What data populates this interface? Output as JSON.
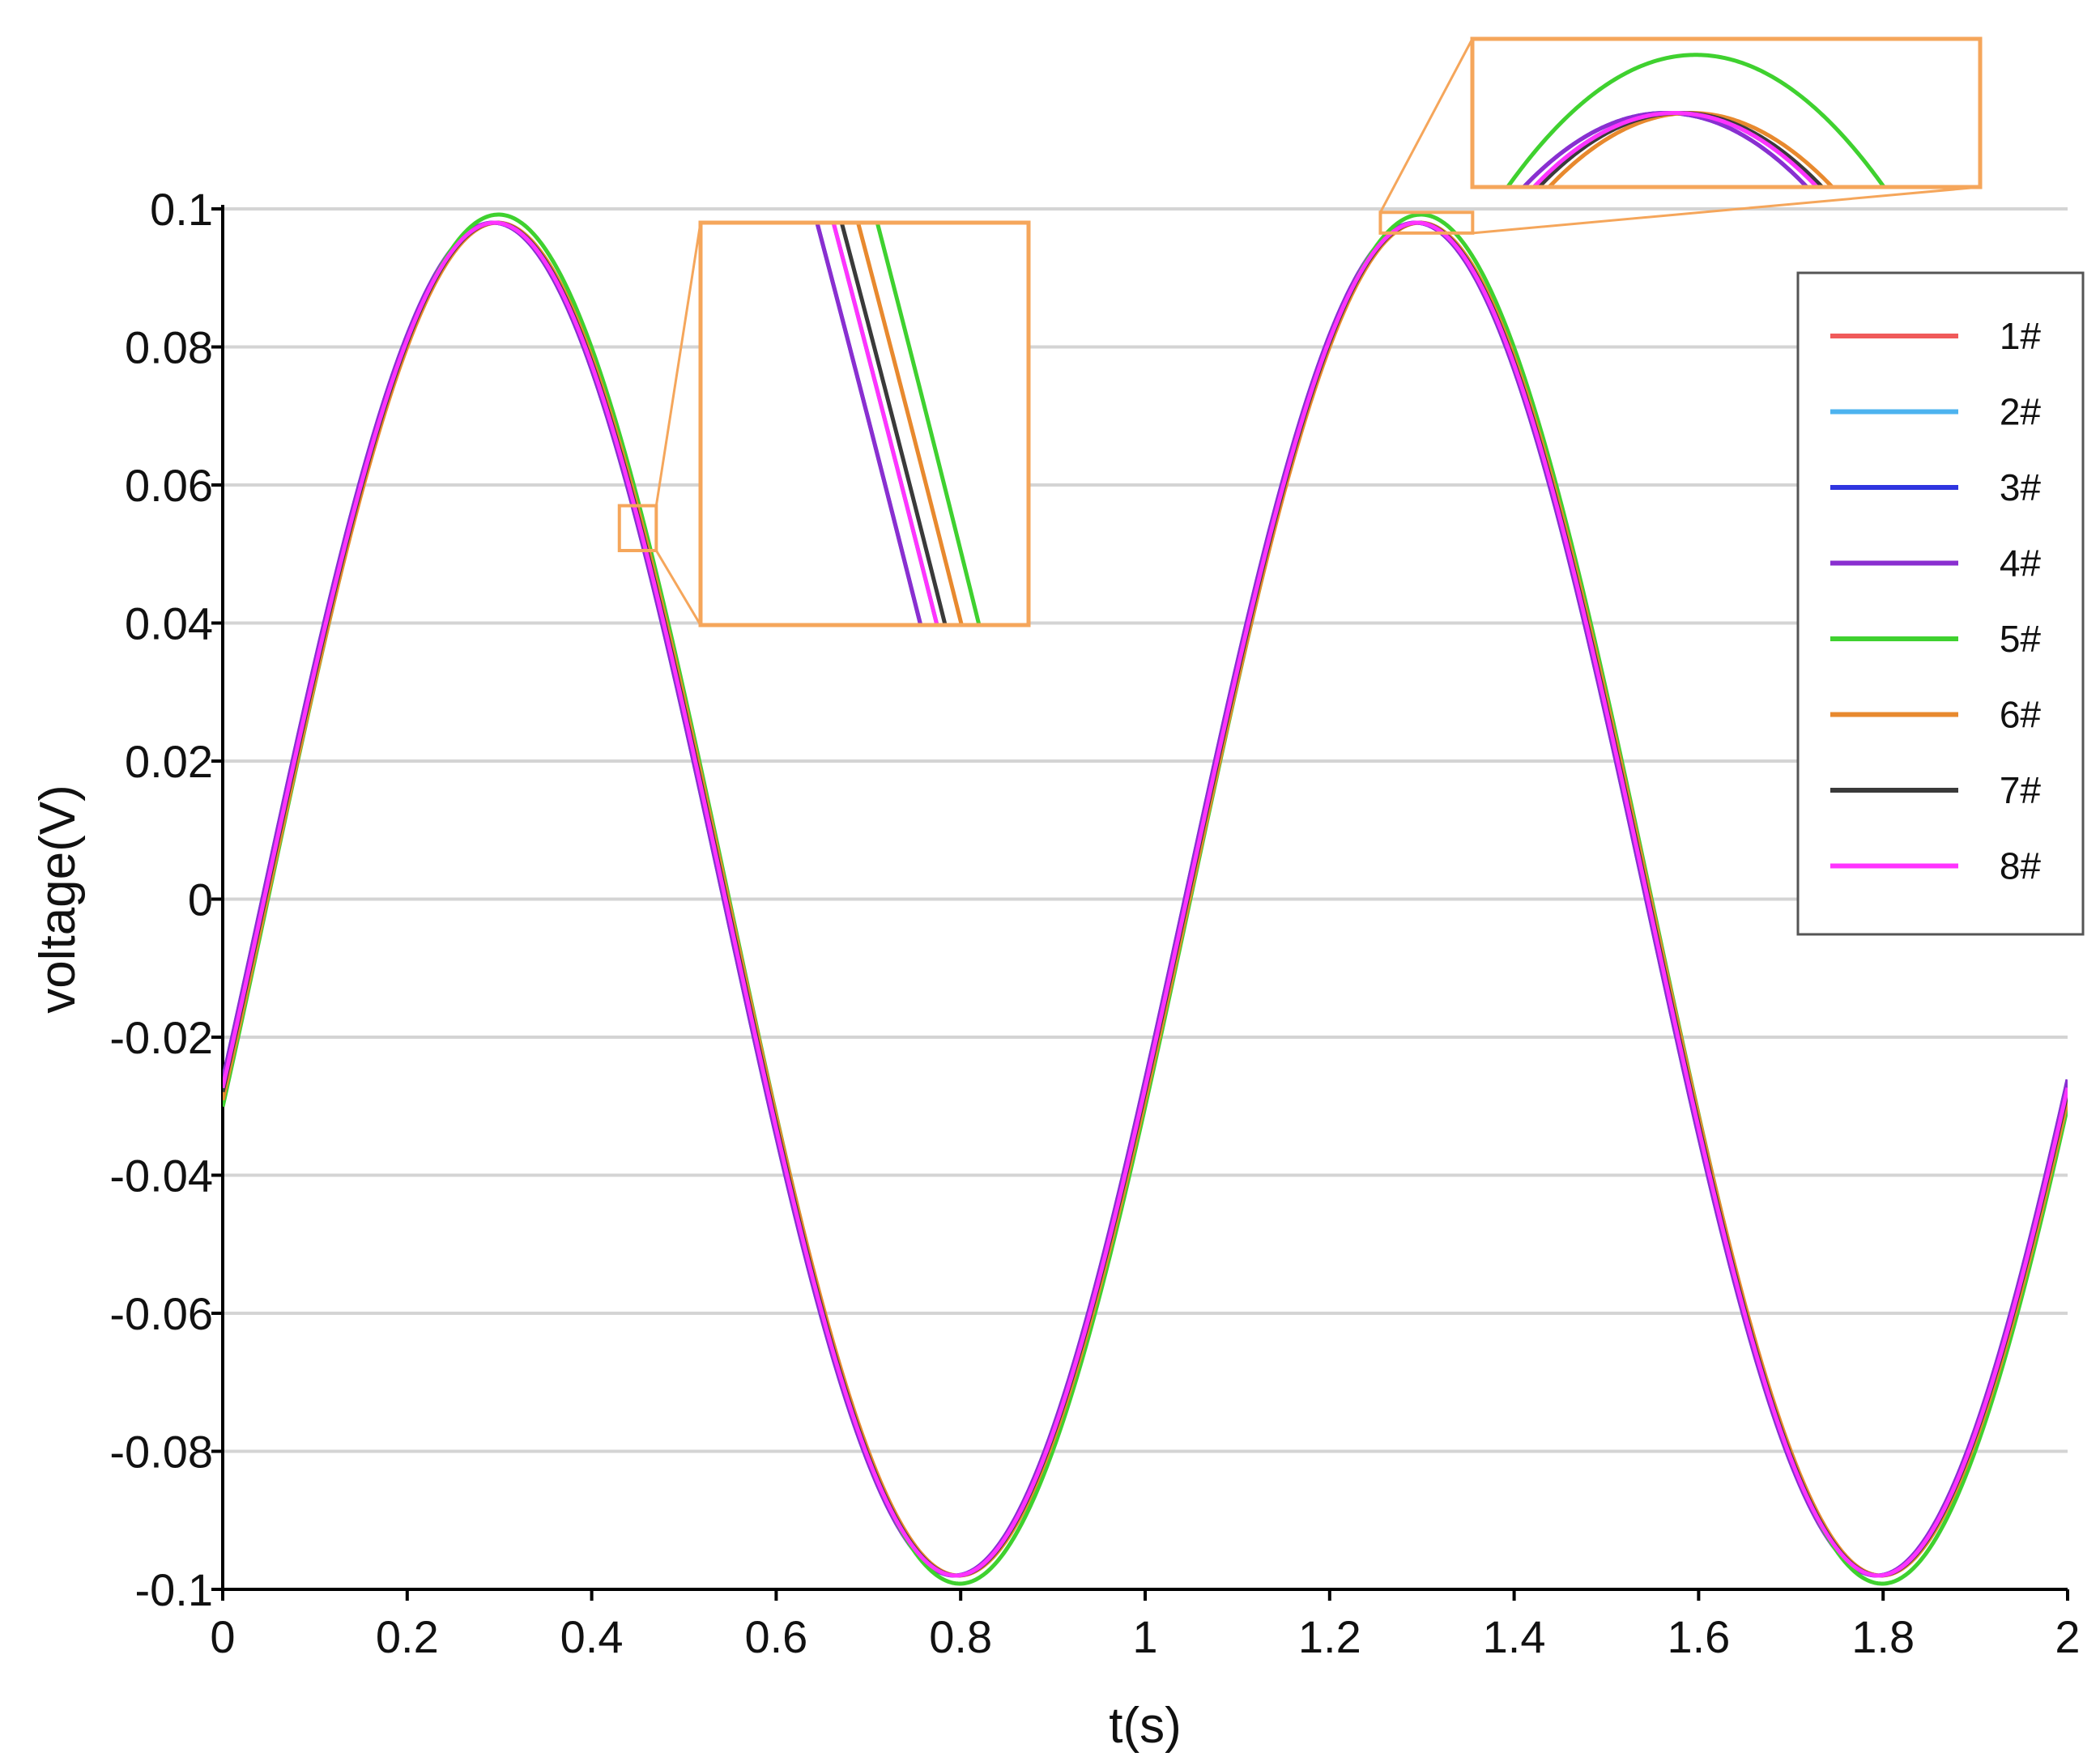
{
  "chart_data": {
    "type": "line",
    "xlabel": "t(s)",
    "ylabel": "voltage(V)",
    "xlim": [
      0,
      2
    ],
    "ylim": [
      -0.1,
      0.1
    ],
    "x_ticks": [
      "0",
      "0.2",
      "0.4",
      "0.6",
      "0.8",
      "1",
      "1.2",
      "1.4",
      "1.6",
      "1.8",
      "2"
    ],
    "y_ticks": [
      "0.1",
      "0.08",
      "0.06",
      "0.04",
      "0.02",
      "0",
      "-0.02",
      "-0.04",
      "-0.06",
      "-0.08",
      "-0.1"
    ],
    "grid": "horizontal",
    "legend_position": "right",
    "signal": {
      "shape": "sinusoid",
      "amplitude": 0.098,
      "period": 1.0,
      "first_peak_t": 0.295
    },
    "series": [
      {
        "name": "1#",
        "color": "#f05a5a",
        "phase_shift": 0.0,
        "amplitude_scale": 1.0
      },
      {
        "name": "2#",
        "color": "#4db3ef",
        "phase_shift": 0.0,
        "amplitude_scale": 1.0
      },
      {
        "name": "3#",
        "color": "#2f35e0",
        "phase_shift": -0.002,
        "amplitude_scale": 1.0
      },
      {
        "name": "4#",
        "color": "#8a2fd0",
        "phase_shift": -0.002,
        "amplitude_scale": 1.0
      },
      {
        "name": "5#",
        "color": "#3fd12f",
        "phase_shift": 0.004,
        "amplitude_scale": 1.012
      },
      {
        "name": "6#",
        "color": "#e8892e",
        "phase_shift": 0.003,
        "amplitude_scale": 1.0
      },
      {
        "name": "7#",
        "color": "#3a3a3a",
        "phase_shift": 0.001,
        "amplitude_scale": 1.0
      },
      {
        "name": "8#",
        "color": "#ff33ff",
        "phase_shift": 0.0,
        "amplitude_scale": 1.0
      }
    ],
    "insets": [
      {
        "target_t": [
          0.43,
          0.47
        ],
        "target_v": [
          0.0505,
          0.057
        ]
      },
      {
        "target_t": [
          1.255,
          1.355
        ],
        "target_v": [
          0.0965,
          0.0995
        ]
      }
    ],
    "colors": {
      "frame": "#f5a65b",
      "grid": "#d4d4d4",
      "axis": "#000000"
    }
  }
}
